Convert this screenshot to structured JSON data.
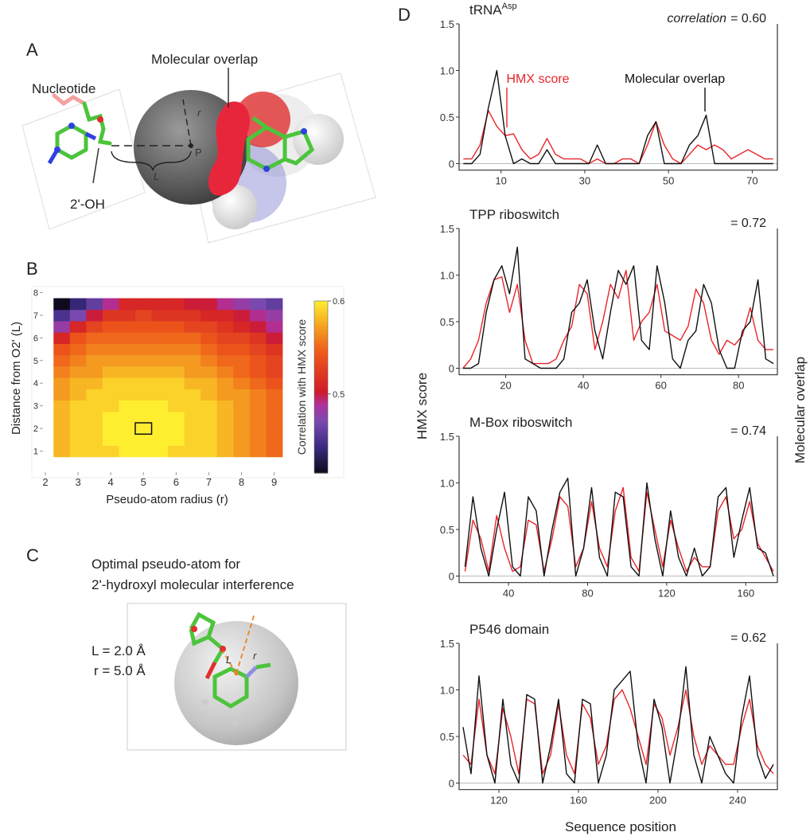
{
  "panel_labels": [
    "A",
    "B",
    "C",
    "D"
  ],
  "panel_a": {
    "nucleotide": "Nucleotide",
    "molecular_overlap": "Molecular overlap",
    "hydroxyl": "2'-OH",
    "r": "r",
    "L": "L",
    "P": "P"
  },
  "panel_c": {
    "title_line1": "Optimal pseudo-atom for",
    "title_line2": "2'-hydroxyl molecular interference",
    "L_value": "L = 2.0 Å",
    "r_value": "r = 5.0 Å",
    "L": "L",
    "r": "r"
  },
  "shared_axes": {
    "x_label": "Sequence position",
    "y_label": "HMX score",
    "y2_label": "Molecular overlap"
  },
  "chart_data": [
    {
      "type": "heatmap",
      "x_label": "Pseudo-atom radius (r)",
      "y_label": "Distance from O2' (L)",
      "colorbar_label": "Correlation with HMX score",
      "x": [
        2.5,
        3,
        3.5,
        4,
        4.5,
        5,
        5.5,
        6,
        6.5,
        7,
        7.5,
        8,
        8.5,
        9
      ],
      "y": [
        1,
        1.5,
        2,
        2.5,
        3,
        3.5,
        4,
        4.5,
        5,
        5.5,
        6,
        6.5,
        7,
        7.5
      ],
      "z": [
        [
          0.58,
          0.59,
          0.59,
          0.59,
          0.6,
          0.6,
          0.6,
          0.59,
          0.59,
          0.59,
          0.58,
          0.57,
          0.56,
          0.55
        ],
        [
          0.58,
          0.59,
          0.59,
          0.6,
          0.6,
          0.6,
          0.6,
          0.6,
          0.59,
          0.59,
          0.58,
          0.57,
          0.56,
          0.55
        ],
        [
          0.58,
          0.59,
          0.59,
          0.6,
          0.6,
          0.6,
          0.6,
          0.6,
          0.59,
          0.59,
          0.58,
          0.57,
          0.56,
          0.55
        ],
        [
          0.58,
          0.59,
          0.59,
          0.6,
          0.6,
          0.6,
          0.6,
          0.6,
          0.59,
          0.59,
          0.58,
          0.57,
          0.56,
          0.55
        ],
        [
          0.58,
          0.59,
          0.59,
          0.59,
          0.6,
          0.6,
          0.6,
          0.59,
          0.59,
          0.59,
          0.58,
          0.57,
          0.56,
          0.55
        ],
        [
          0.57,
          0.58,
          0.59,
          0.59,
          0.59,
          0.59,
          0.59,
          0.59,
          0.59,
          0.58,
          0.57,
          0.57,
          0.56,
          0.55
        ],
        [
          0.57,
          0.58,
          0.58,
          0.59,
          0.59,
          0.59,
          0.59,
          0.59,
          0.58,
          0.58,
          0.57,
          0.56,
          0.55,
          0.54
        ],
        [
          0.56,
          0.57,
          0.57,
          0.58,
          0.58,
          0.58,
          0.58,
          0.58,
          0.57,
          0.57,
          0.56,
          0.55,
          0.54,
          0.53
        ],
        [
          0.55,
          0.56,
          0.57,
          0.57,
          0.57,
          0.57,
          0.57,
          0.57,
          0.57,
          0.56,
          0.55,
          0.55,
          0.54,
          0.53
        ],
        [
          0.54,
          0.55,
          0.56,
          0.56,
          0.56,
          0.56,
          0.56,
          0.56,
          0.56,
          0.55,
          0.54,
          0.54,
          0.53,
          0.52
        ],
        [
          0.51,
          0.54,
          0.55,
          0.55,
          0.55,
          0.55,
          0.55,
          0.55,
          0.55,
          0.54,
          0.53,
          0.53,
          0.52,
          0.5
        ],
        [
          0.48,
          0.51,
          0.53,
          0.54,
          0.54,
          0.54,
          0.54,
          0.54,
          0.53,
          0.53,
          0.52,
          0.51,
          0.5,
          0.49
        ],
        [
          0.45,
          0.47,
          0.5,
          0.52,
          0.52,
          0.53,
          0.52,
          0.52,
          0.52,
          0.51,
          0.51,
          0.5,
          0.49,
          0.48
        ],
        [
          0.41,
          0.44,
          0.46,
          0.49,
          0.51,
          0.51,
          0.51,
          0.51,
          0.5,
          0.5,
          0.49,
          0.48,
          0.47,
          0.46
        ]
      ],
      "xlim": [
        2,
        9.35
      ],
      "ylim": [
        0.6,
        8.05
      ],
      "xticks": [
        2,
        3,
        4,
        5,
        6,
        7,
        8,
        9
      ],
      "yticks": [
        1,
        2,
        3,
        4,
        5,
        6,
        7,
        8
      ],
      "clim": [
        0.415,
        0.6
      ],
      "cticks": [
        0.5,
        0.6
      ],
      "highlight": {
        "x": 5,
        "y": 2
      }
    },
    {
      "type": "line",
      "title": "tRNA",
      "title_sup": "Asp",
      "annotation_label": "correlation",
      "annotation": "= 0.60",
      "x": [
        1,
        3,
        5,
        7,
        9,
        11,
        13,
        15,
        17,
        19,
        21,
        23,
        25,
        27,
        29,
        31,
        33,
        35,
        37,
        39,
        41,
        43,
        45,
        47,
        49,
        51,
        53,
        55,
        57,
        59,
        61,
        63,
        65,
        67,
        69,
        71,
        73,
        75
      ],
      "series": [
        {
          "name": "HMX score",
          "color": "#e8262b",
          "values": [
            0.05,
            0.05,
            0.2,
            0.57,
            0.4,
            0.3,
            0.32,
            0.15,
            0.05,
            0.1,
            0.27,
            0.1,
            0.05,
            0.05,
            0.05,
            0,
            0.05,
            0,
            0,
            0.05,
            0.05,
            0,
            0.2,
            0.45,
            0.2,
            0.05,
            0,
            0.1,
            0.2,
            0.15,
            0.2,
            0.15,
            0.05,
            0.1,
            0.15,
            0.1,
            0.05,
            0.05
          ]
        },
        {
          "name": "Molecular overlap",
          "color": "#111111",
          "values": [
            0,
            0,
            0.1,
            0.6,
            1.0,
            0.3,
            0,
            0.05,
            0,
            0,
            0.15,
            0,
            0,
            0,
            0,
            0,
            0.2,
            0,
            0,
            0,
            0,
            0,
            0.3,
            0.45,
            0,
            0,
            0,
            0.2,
            0.3,
            0.52,
            0,
            0,
            0,
            0,
            0,
            0,
            0,
            0
          ]
        }
      ],
      "xlim": [
        0,
        76
      ],
      "ylim": [
        -0.07,
        1.5
      ],
      "xticks": [
        10,
        30,
        50,
        70
      ],
      "yticks": [
        0,
        0.5,
        {
          "value": 1,
          "label": "1.0"
        },
        1.5
      ]
    },
    {
      "type": "line",
      "title": "TPP riboswitch",
      "annotation": "= 0.72",
      "x": [
        9,
        11,
        13,
        15,
        17,
        19,
        21,
        23,
        25,
        27,
        29,
        31,
        33,
        35,
        37,
        39,
        41,
        43,
        45,
        47,
        49,
        51,
        53,
        55,
        57,
        59,
        61,
        63,
        65,
        67,
        69,
        71,
        73,
        75,
        77,
        79,
        81,
        83,
        85,
        87,
        89
      ],
      "series": [
        {
          "color": "#e8262b",
          "values": [
            0,
            0.1,
            0.3,
            0.7,
            0.95,
            0.98,
            0.6,
            0.9,
            0.3,
            0.05,
            0.05,
            0.05,
            0.1,
            0.3,
            0.45,
            0.9,
            0.8,
            0.2,
            0.5,
            0.9,
            0.75,
            1.05,
            0.3,
            0.5,
            0.6,
            0.9,
            0.4,
            0.35,
            0.3,
            0.45,
            0.85,
            0.7,
            0.3,
            0.15,
            0.3,
            0.25,
            0.35,
            0.65,
            0.3,
            0.2,
            0.2
          ]
        },
        {
          "color": "#111111",
          "values": [
            0,
            0,
            0.05,
            0.6,
            0.95,
            1.1,
            0.8,
            1.3,
            0.1,
            0.05,
            0,
            0,
            0,
            0.1,
            0.6,
            0.7,
            0.95,
            0.4,
            0.1,
            0.6,
            1.05,
            0.9,
            1.1,
            0.3,
            0.2,
            1.1,
            0.7,
            0.1,
            0,
            0.3,
            0.4,
            0.9,
            0.7,
            0.2,
            0,
            0,
            0.4,
            0.5,
            0.95,
            0.1,
            0.05
          ]
        }
      ],
      "xlim": [
        8,
        90
      ],
      "ylim": [
        -0.07,
        1.5
      ],
      "xticks": [
        20,
        40,
        60,
        80
      ],
      "yticks": [
        0,
        0.5,
        {
          "value": 1,
          "label": "1.0"
        },
        1.5
      ]
    },
    {
      "type": "line",
      "title": "M-Box riboswitch",
      "annotation": "= 0.74",
      "x": [
        18,
        22,
        26,
        30,
        34,
        38,
        42,
        46,
        50,
        54,
        58,
        62,
        66,
        70,
        74,
        78,
        82,
        86,
        90,
        94,
        98,
        102,
        106,
        110,
        114,
        118,
        122,
        126,
        130,
        134,
        138,
        142,
        146,
        150,
        154,
        158,
        162,
        166,
        170,
        174
      ],
      "series": [
        {
          "color": "#e8262b",
          "values": [
            0.05,
            0.6,
            0.4,
            0.05,
            0.65,
            0.3,
            0.05,
            0.1,
            0.6,
            0.55,
            0.05,
            0.4,
            0.85,
            0.75,
            0.1,
            0.3,
            0.8,
            0.3,
            0.1,
            0.7,
            0.95,
            0.2,
            0.05,
            0.9,
            0.5,
            0.1,
            0.6,
            0.3,
            0.05,
            0.2,
            0.1,
            0.1,
            0.7,
            0.85,
            0.4,
            0.5,
            0.8,
            0.35,
            0.2,
            0.05
          ]
        },
        {
          "color": "#111111",
          "values": [
            0.1,
            0.85,
            0.3,
            0,
            0.5,
            0.9,
            0.1,
            0,
            0.85,
            0.7,
            0,
            0.5,
            0.9,
            1.05,
            0,
            0.3,
            0.95,
            0.2,
            0,
            0.9,
            0.85,
            0.1,
            0,
            1.0,
            0.4,
            0,
            0.7,
            0.2,
            0,
            0.3,
            0,
            0.1,
            0.85,
            0.95,
            0.2,
            0.6,
            0.95,
            0.3,
            0.25,
            0
          ]
        }
      ],
      "xlim": [
        15,
        176
      ],
      "ylim": [
        -0.07,
        1.5
      ],
      "xticks": [
        40,
        80,
        120,
        160
      ],
      "yticks": [
        0,
        0.5,
        {
          "value": 1,
          "label": "1.0"
        },
        1.5
      ]
    },
    {
      "type": "line",
      "title": "P546 domain",
      "annotation": "= 0.62",
      "x": [
        102,
        106,
        110,
        114,
        118,
        122,
        126,
        130,
        134,
        138,
        142,
        146,
        150,
        154,
        158,
        162,
        166,
        170,
        174,
        178,
        182,
        186,
        190,
        194,
        198,
        202,
        206,
        210,
        214,
        218,
        222,
        226,
        230,
        234,
        238,
        242,
        246,
        250,
        254,
        258
      ],
      "series": [
        {
          "color": "#e8262b",
          "values": [
            0.3,
            0.2,
            0.9,
            0.3,
            0.1,
            0.8,
            0.5,
            0.1,
            0.9,
            0.85,
            0.1,
            0.3,
            0.85,
            0.3,
            0.1,
            0.85,
            0.7,
            0.2,
            0.4,
            0.9,
            1.0,
            0.8,
            0.5,
            0.2,
            0.85,
            0.7,
            0.3,
            0.6,
            1.0,
            0.5,
            0.2,
            0.4,
            0.3,
            0.2,
            0.2,
            0.6,
            0.9,
            0.4,
            0.2,
            0.1
          ]
        },
        {
          "color": "#111111",
          "values": [
            0.6,
            0.1,
            1.15,
            0.3,
            0,
            0.9,
            0.2,
            0,
            0.95,
            0.9,
            0,
            0.4,
            0.9,
            0.1,
            0,
            0.9,
            0.85,
            0,
            0.3,
            1.0,
            1.1,
            1.2,
            0.4,
            0,
            0.9,
            0.6,
            0,
            0.5,
            1.25,
            0.3,
            0,
            0.5,
            0.3,
            0.1,
            0,
            0.7,
            1.15,
            0.3,
            0.05,
            0.2
          ]
        }
      ],
      "xlim": [
        100,
        260
      ],
      "ylim": [
        -0.07,
        1.5
      ],
      "xticks": [
        120,
        160,
        200,
        240
      ],
      "yticks": [
        0,
        0.5,
        {
          "value": 1,
          "label": "1.0"
        },
        1.5
      ]
    }
  ]
}
